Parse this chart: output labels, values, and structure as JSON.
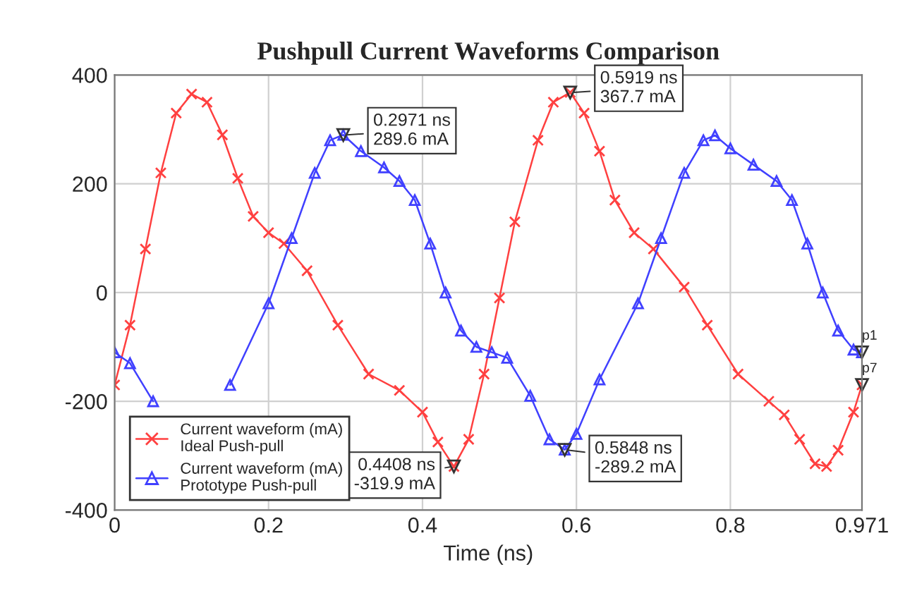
{
  "chart_data": {
    "type": "line",
    "title": "Pushpull Current Waveforms Comparison",
    "xlabel": "Time (ns)",
    "xlim": [
      0,
      0.971
    ],
    "ylim": [
      -400,
      400
    ],
    "xticks": [
      0,
      0.2,
      0.4,
      0.6,
      0.8,
      0.971
    ],
    "yticks": [
      -400,
      -200,
      0,
      200,
      400
    ],
    "grid": true,
    "legend": "bottom left",
    "line_style": "solid",
    "series": [
      {
        "name": "Current waveform (mA)\nIdeal Push-pull",
        "color": "#ff4040",
        "marker": "cross",
        "x": [
          0,
          0.02,
          0.04,
          0.06,
          0.08,
          0.1,
          0.12,
          0.14,
          0.16,
          0.18,
          0.2,
          0.22,
          0.25,
          0.29,
          0.33,
          0.37,
          0.4,
          0.42,
          0.4408,
          0.46,
          0.48,
          0.5,
          0.52,
          0.55,
          0.57,
          0.5919,
          0.61,
          0.63,
          0.65,
          0.675,
          0.7,
          0.74,
          0.77,
          0.81,
          0.85,
          0.87,
          0.89,
          0.91,
          0.925,
          0.94,
          0.96,
          0.971
        ],
        "values": [
          -170,
          -60,
          80,
          220,
          330,
          365,
          350,
          290,
          210,
          140,
          110,
          90,
          40,
          -60,
          -150,
          -180,
          -220,
          -275,
          -320,
          -270,
          -150,
          -10,
          130,
          280,
          350,
          368,
          330,
          260,
          170,
          110,
          80,
          10,
          -60,
          -150,
          -200,
          -225,
          -270,
          -315,
          -320,
          -290,
          -220,
          -170
        ]
      },
      {
        "name": "Current waveform (mA)\nPrototype Push-pull",
        "color": "#4040ff",
        "marker": "triangle",
        "x": [
          0,
          0.02,
          0.05,
          0.08,
          0.1,
          0.12,
          0.15,
          0.2,
          0.23,
          0.26,
          0.28,
          0.2971,
          0.32,
          0.35,
          0.37,
          0.39,
          0.41,
          0.43,
          0.45,
          0.47,
          0.49,
          0.51,
          0.54,
          0.565,
          0.5848,
          0.6,
          0.63,
          0.68,
          0.71,
          0.74,
          0.765,
          0.78,
          0.8,
          0.83,
          0.86,
          0.88,
          0.9,
          0.92,
          0.94,
          0.96,
          0.971
        ],
        "values": [
          -110,
          -130,
          -200,
          null,
          null,
          null,
          -170,
          -20,
          100,
          220,
          280,
          290,
          260,
          230,
          205,
          170,
          90,
          0,
          -70,
          -100,
          -110,
          -120,
          -190,
          -270,
          -289,
          -260,
          -160,
          -20,
          100,
          220,
          280,
          289,
          265,
          235,
          205,
          170,
          90,
          0,
          -70,
          -105,
          -110
        ]
      }
    ],
    "annotations": [
      {
        "text": "0.2971 ns\n289.6 mA",
        "x": 0.2971,
        "y": 289.6
      },
      {
        "text": "0.5919 ns\n367.7 mA",
        "x": 0.5919,
        "y": 367.7
      },
      {
        "text": "0.4408 ns\n-319.9 mA",
        "x": 0.4408,
        "y": -319.9
      },
      {
        "text": "0.5848 ns\n-289.2 mA",
        "x": 0.5848,
        "y": -289.2
      },
      {
        "text": "p1",
        "x": 0.971,
        "y": -110
      },
      {
        "text": "p7",
        "x": 0.971,
        "y": -170
      }
    ]
  }
}
